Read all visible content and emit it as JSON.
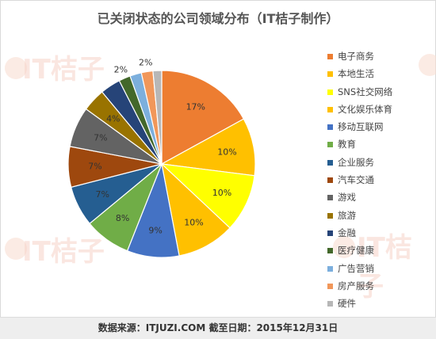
{
  "header": {
    "title": "已关闭状态的公司领域分布（IT桔子制作）"
  },
  "footer": {
    "source": "数据来源：ITJUZI.COM  截至日期：2015年12月31日"
  },
  "watermark": {
    "text": "IT桔子"
  },
  "chart_data": {
    "type": "pie",
    "title": "已关闭状态的公司领域分布（IT桔子制作）",
    "legend_position": "right",
    "start_angle_deg": 0,
    "direction": "clockwise",
    "slices": [
      {
        "label": "电子商务",
        "value": 17,
        "display": "17%",
        "color": "#ED7D31"
      },
      {
        "label": "本地生活",
        "value": 10,
        "display": "10%",
        "color": "#FFC000"
      },
      {
        "label": "SNS社交网络",
        "value": 10,
        "display": "10%",
        "color": "#FFFF00"
      },
      {
        "label": "文化娱乐体育",
        "value": 10,
        "display": "10%",
        "color": "#FFC000"
      },
      {
        "label": "移动互联网",
        "value": 9,
        "display": "9%",
        "color": "#4472C4"
      },
      {
        "label": "教育",
        "value": 8,
        "display": "8%",
        "color": "#70AD47"
      },
      {
        "label": "企业服务",
        "value": 7,
        "display": "7%",
        "color": "#255E91"
      },
      {
        "label": "汽车交通",
        "value": 7,
        "display": "7%",
        "color": "#9E480E"
      },
      {
        "label": "游戏",
        "value": 7,
        "display": "7%",
        "color": "#636363"
      },
      {
        "label": "旅游",
        "value": 4,
        "display": "4%",
        "color": "#997300"
      },
      {
        "label": "金融",
        "value": 3.5,
        "display": "",
        "color": "#264478"
      },
      {
        "label": "医疗健康",
        "value": 2,
        "display": "2%",
        "color": "#43682B"
      },
      {
        "label": "广告营销",
        "value": 2,
        "display": "",
        "color": "#7CAFDD"
      },
      {
        "label": "房产服务",
        "value": 2,
        "display": "2%",
        "color": "#F1975A"
      },
      {
        "label": "硬件",
        "value": 1.5,
        "display": "",
        "color": "#B7B7B7"
      }
    ]
  }
}
